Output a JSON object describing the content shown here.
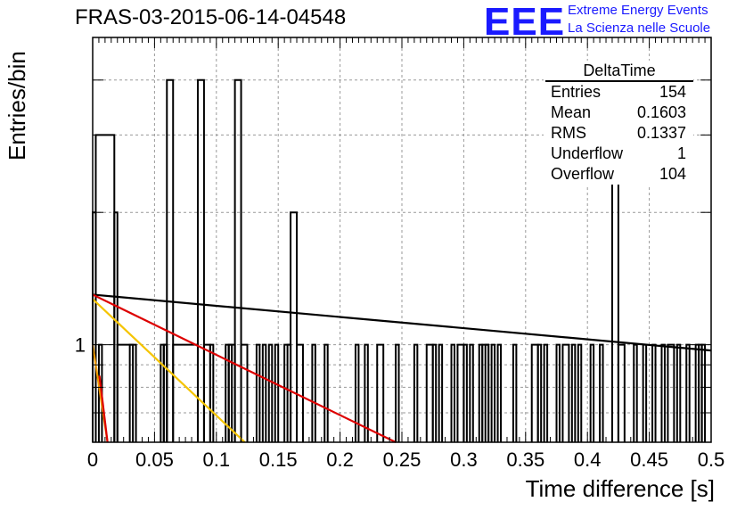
{
  "header": {
    "title": "FRAS-03-2015-06-14-04548",
    "logo_text": "EEE",
    "logo_line1": "Extreme Energy Events",
    "logo_line2": "La Scienza nelle Scuole"
  },
  "stats": {
    "title": "DeltaTime",
    "rows": [
      {
        "label": "Entries",
        "value": "154"
      },
      {
        "label": "Mean",
        "value": "0.1603"
      },
      {
        "label": "RMS",
        "value": "0.1337"
      },
      {
        "label": "Underflow",
        "value": "1"
      },
      {
        "label": "Overflow",
        "value": "104"
      }
    ]
  },
  "chart_data": {
    "type": "bar",
    "title": "FRAS-03-2015-06-14-04548",
    "xlabel": "Time difference [s]",
    "ylabel": "Entries/bin",
    "xlim": [
      0,
      0.5
    ],
    "ylim": [
      0.6,
      5.0
    ],
    "ylog": true,
    "grid": true,
    "x_ticks": [
      "0",
      "0.05",
      "0.1",
      "0.15",
      "0.2",
      "0.25",
      "0.3",
      "0.35",
      "0.4",
      "0.45",
      "0.5"
    ],
    "y_ticks": [
      "1"
    ],
    "bin_width": 0.0025,
    "histogram_segments": [
      [
        0.0,
        0.0025,
        2
      ],
      [
        0.0025,
        0.0175,
        3
      ],
      [
        0.0175,
        0.02,
        2
      ],
      [
        0.02,
        0.035,
        1
      ],
      [
        0.0575,
        0.06,
        1
      ],
      [
        0.06,
        0.065,
        4
      ],
      [
        0.065,
        0.085,
        1
      ],
      [
        0.085,
        0.09,
        4
      ],
      [
        0.09,
        0.095,
        1
      ],
      [
        0.11,
        0.115,
        1
      ],
      [
        0.115,
        0.12,
        4
      ],
      [
        0.12,
        0.125,
        1
      ],
      [
        0.155,
        0.16,
        1
      ],
      [
        0.16,
        0.165,
        2
      ],
      [
        0.165,
        0.17,
        1
      ],
      [
        0.23,
        0.235,
        1
      ],
      [
        0.27,
        0.275,
        1
      ],
      [
        0.295,
        0.3,
        1
      ],
      [
        0.315,
        0.32,
        1
      ],
      [
        0.355,
        0.36,
        1
      ],
      [
        0.38,
        0.385,
        1
      ],
      [
        0.42,
        0.425,
        3
      ],
      [
        0.425,
        0.43,
        1
      ],
      [
        0.465,
        0.47,
        1
      ]
    ],
    "spike_bins": [
      0.005,
      0.03,
      0.055,
      0.0575,
      0.095,
      0.1075,
      0.11,
      0.1325,
      0.1375,
      0.1425,
      0.1475,
      0.1575,
      0.1775,
      0.1875,
      0.2125,
      0.22,
      0.245,
      0.26,
      0.275,
      0.28,
      0.29,
      0.3,
      0.305,
      0.3125,
      0.3175,
      0.3225,
      0.3275,
      0.34,
      0.36,
      0.365,
      0.375,
      0.3875,
      0.3925,
      0.4025,
      0.41,
      0.4375,
      0.445,
      0.4525,
      0.46,
      0.4725,
      0.48,
      0.4875,
      0.49,
      0.4925
    ],
    "series": [
      {
        "color": "#000000",
        "x": [
          0.0,
          0.5
        ],
        "y": [
          1.3,
          0.97
        ]
      },
      {
        "color": "#dd0000",
        "x": [
          0.0,
          0.245
        ],
        "y": [
          1.3,
          0.6
        ]
      },
      {
        "color": "#f5c400",
        "x": [
          0.0,
          0.123
        ],
        "y": [
          1.27,
          0.6
        ]
      },
      {
        "color": "#ee9900",
        "x": [
          0.0,
          0.012
        ],
        "y": [
          1.0,
          0.6
        ]
      },
      {
        "color": "#dd0000",
        "x": [
          0.0055,
          0.012
        ],
        "y": [
          0.85,
          0.6
        ]
      }
    ]
  }
}
